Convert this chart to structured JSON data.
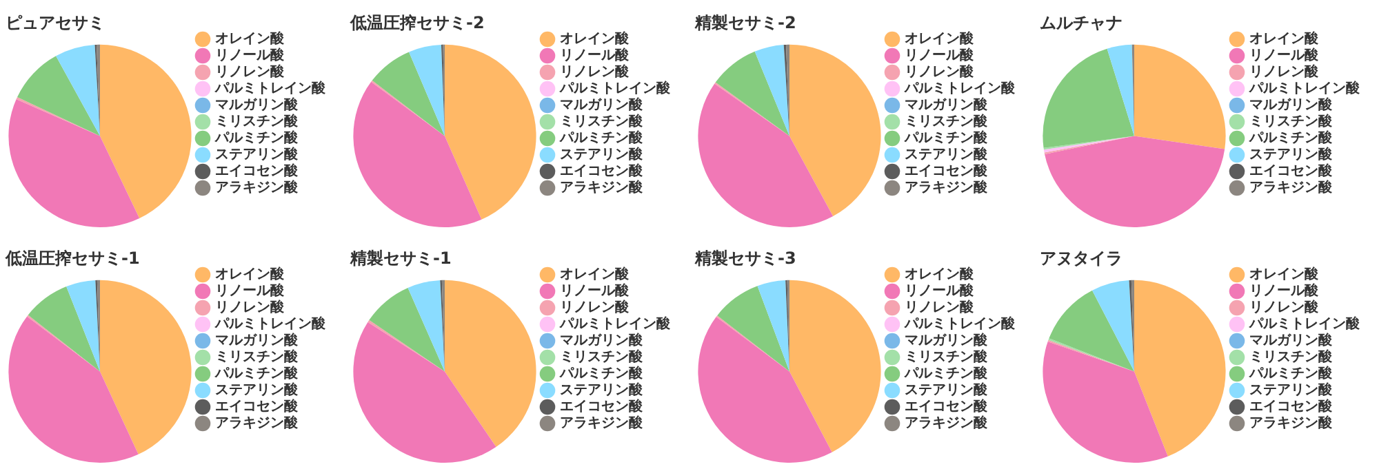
{
  "chart_data": [
    {
      "type": "pie",
      "title": "ピュアセサミ",
      "categories": [
        "オレイン酸",
        "リノール酸",
        "リノレン酸",
        "パルミトレイン酸",
        "マルガリン酸",
        "ミリスチン酸",
        "パルミチン酸",
        "ステアリン酸",
        "エイコセン酸",
        "アラキジン酸"
      ],
      "values": [
        42.9,
        38.7,
        0.4,
        null,
        null,
        null,
        10.0,
        7.1,
        0.3,
        0.6
      ],
      "colors": [
        "#ffb866",
        "#f178b6",
        "#f5a3b0",
        "#ffc2f5",
        "#7ab8e8",
        "#a3e0a8",
        "#85cc7f",
        "#8adcff",
        "#5c5c5c",
        "#8c8680"
      ],
      "legend": "right"
    },
    {
      "type": "pie",
      "title": "低温圧搾セサミ-2",
      "categories": [
        "オレイン酸",
        "リノール酸",
        "リノレン酸",
        "パルミトレイン酸",
        "マルガリン酸",
        "ミリスチン酸",
        "パルミチン酸",
        "ステアリン酸",
        "エイコセン酸",
        "アラキジン酸"
      ],
      "values": [
        43.4,
        41.7,
        0.3,
        null,
        null,
        null,
        8.2,
        5.8,
        0.3,
        0.3
      ],
      "colors": [
        "#ffb866",
        "#f178b6",
        "#f5a3b0",
        "#ffc2f5",
        "#7ab8e8",
        "#a3e0a8",
        "#85cc7f",
        "#8adcff",
        "#5c5c5c",
        "#8c8680"
      ],
      "legend": "right"
    },
    {
      "type": "pie",
      "title": "精製セサミ-2",
      "categories": [
        "オレイン酸",
        "リノール酸",
        "リノレン酸",
        "パルミトレイン酸",
        "マルガリン酸",
        "ミリスチン酸",
        "パルミチン酸",
        "ステアリン酸",
        "エイコセン酸",
        "アラキジン酸"
      ],
      "values": [
        42.1,
        42.6,
        0.3,
        null,
        null,
        null,
        8.8,
        5.2,
        0.4,
        0.6
      ],
      "colors": [
        "#ffb866",
        "#f178b6",
        "#f5a3b0",
        "#ffc2f5",
        "#7ab8e8",
        "#a3e0a8",
        "#85cc7f",
        "#8adcff",
        "#5c5c5c",
        "#8c8680"
      ],
      "legend": "right"
    },
    {
      "type": "pie",
      "title": "ムルチャナ",
      "categories": [
        "オレイン酸",
        "リノール酸",
        "リノレン酸",
        "パルミトレイン酸",
        "マルガリン酸",
        "ミリスチン酸",
        "パルミチン酸",
        "ステアリン酸",
        "エイコセン酸",
        "アラキジン酸"
      ],
      "values": [
        27.3,
        44.5,
        0.3,
        0.5,
        null,
        0.3,
        22.3,
        4.4,
        null,
        0.4
      ],
      "colors": [
        "#ffb866",
        "#f178b6",
        "#f5a3b0",
        "#ffc2f5",
        "#7ab8e8",
        "#a3e0a8",
        "#85cc7f",
        "#8adcff",
        "#5c5c5c",
        "#8c8680"
      ],
      "legend": "right"
    },
    {
      "type": "pie",
      "title": "低温圧搾セサミ-1",
      "categories": [
        "オレイン酸",
        "リノール酸",
        "リノレン酸",
        "パルミトレイン酸",
        "マルガリン酸",
        "ミリスチン酸",
        "パルミチン酸",
        "ステアリン酸",
        "エイコセン酸",
        "アラキジン酸"
      ],
      "values": [
        43.1,
        42.2,
        0.3,
        null,
        null,
        null,
        8.4,
        5.2,
        0.3,
        0.5
      ],
      "colors": [
        "#ffb866",
        "#f178b6",
        "#f5a3b0",
        "#ffc2f5",
        "#7ab8e8",
        "#a3e0a8",
        "#85cc7f",
        "#8adcff",
        "#5c5c5c",
        "#8c8680"
      ],
      "legend": "right"
    },
    {
      "type": "pie",
      "title": "精製セサミ-1",
      "categories": [
        "オレイン酸",
        "リノール酸",
        "リノレン酸",
        "パルミトレイン酸",
        "マルガリン酸",
        "ミリスチン酸",
        "パルミチン酸",
        "ステアリン酸",
        "エイコセン酸",
        "アラキジン酸"
      ],
      "values": [
        40.5,
        43.6,
        0.4,
        null,
        null,
        null,
        8.9,
        5.8,
        0.3,
        0.5
      ],
      "colors": [
        "#ffb866",
        "#f178b6",
        "#f5a3b0",
        "#ffc2f5",
        "#7ab8e8",
        "#a3e0a8",
        "#85cc7f",
        "#8adcff",
        "#5c5c5c",
        "#8c8680"
      ],
      "legend": "right"
    },
    {
      "type": "pie",
      "title": "精製セサミ-3",
      "categories": [
        "オレイン酸",
        "リノール酸",
        "リノレン酸",
        "パルミトレイン酸",
        "マルガリン酸",
        "ミリスチン酸",
        "パルミチン酸",
        "ステアリン酸",
        "エイコセン酸",
        "アラキジン酸"
      ],
      "values": [
        42.3,
        42.9,
        0.3,
        null,
        null,
        null,
        8.8,
        5.0,
        0.3,
        0.4
      ],
      "colors": [
        "#ffb866",
        "#f178b6",
        "#f5a3b0",
        "#ffc2f5",
        "#7ab8e8",
        "#a3e0a8",
        "#85cc7f",
        "#8adcff",
        "#5c5c5c",
        "#8c8680"
      ],
      "legend": "right"
    },
    {
      "type": "pie",
      "title": "アヌタイラ",
      "categories": [
        "オレイン酸",
        "リノール酸",
        "リノレン酸",
        "パルミトレイン酸",
        "マルガリン酸",
        "ミリスチン酸",
        "パルミチン酸",
        "ステアリン酸",
        "エイコセン酸",
        "アラキジン酸"
      ],
      "values": [
        44.0,
        36.3,
        0.3,
        null,
        null,
        0.3,
        11.5,
        6.7,
        0.4,
        0.5
      ],
      "colors": [
        "#ffb866",
        "#f178b6",
        "#f5a3b0",
        "#ffc2f5",
        "#7ab8e8",
        "#a3e0a8",
        "#85cc7f",
        "#8adcff",
        "#5c5c5c",
        "#8c8680"
      ],
      "legend": "right"
    }
  ]
}
